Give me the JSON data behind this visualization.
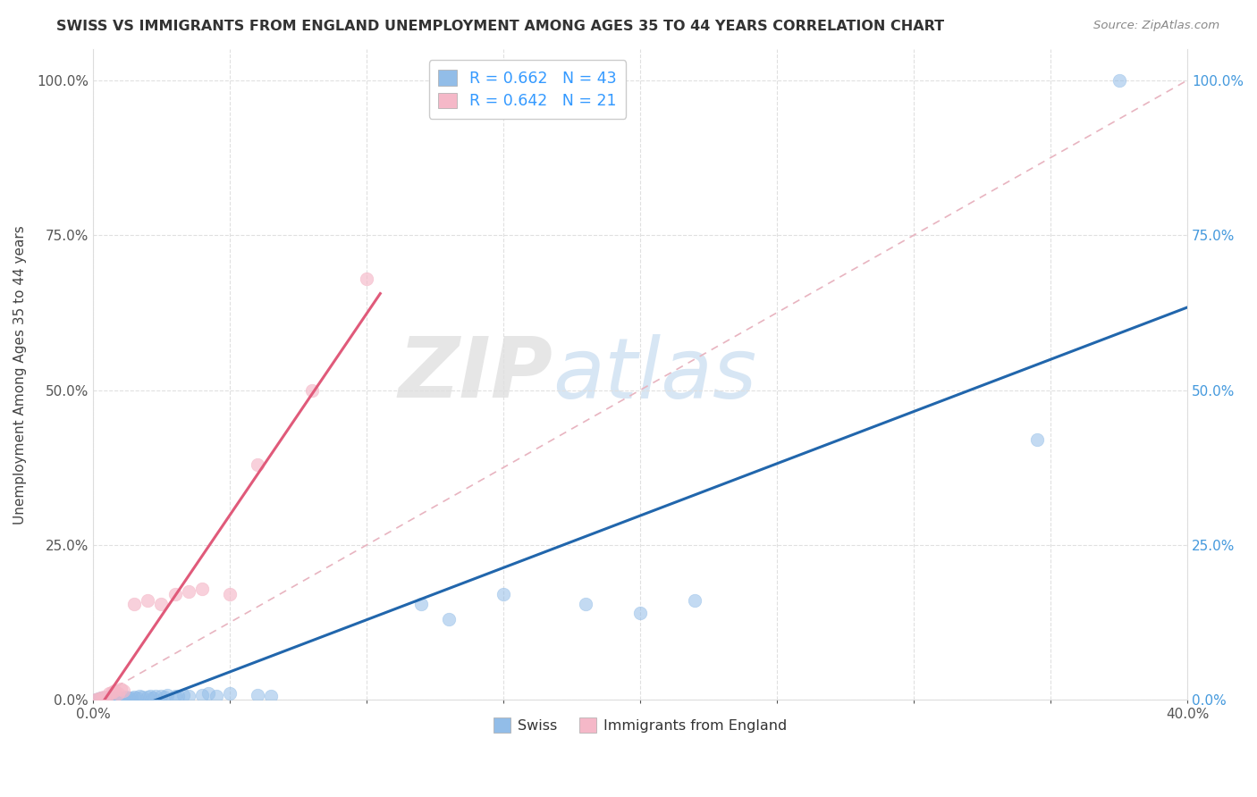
{
  "title": "SWISS VS IMMIGRANTS FROM ENGLAND UNEMPLOYMENT AMONG AGES 35 TO 44 YEARS CORRELATION CHART",
  "source": "Source: ZipAtlas.com",
  "ylabel": "Unemployment Among Ages 35 to 44 years",
  "xlim": [
    0.0,
    0.4
  ],
  "ylim": [
    0.0,
    1.05
  ],
  "xticks": [
    0.0,
    0.05,
    0.1,
    0.15,
    0.2,
    0.25,
    0.3,
    0.35,
    0.4
  ],
  "yticks": [
    0.0,
    0.25,
    0.5,
    0.75,
    1.0
  ],
  "swiss_x": [
    0.001,
    0.002,
    0.003,
    0.004,
    0.005,
    0.006,
    0.007,
    0.008,
    0.009,
    0.01,
    0.011,
    0.012,
    0.013,
    0.014,
    0.015,
    0.016,
    0.017,
    0.018,
    0.02,
    0.021,
    0.022,
    0.023,
    0.025,
    0.026,
    0.027,
    0.03,
    0.031,
    0.033,
    0.035,
    0.04,
    0.042,
    0.045,
    0.05,
    0.06,
    0.065,
    0.12,
    0.13,
    0.15,
    0.18,
    0.2,
    0.22,
    0.345,
    0.375
  ],
  "swiss_y": [
    0.001,
    0.002,
    0.003,
    0.002,
    0.003,
    0.004,
    0.002,
    0.003,
    0.004,
    0.003,
    0.004,
    0.005,
    0.004,
    0.003,
    0.005,
    0.004,
    0.006,
    0.005,
    0.005,
    0.006,
    0.004,
    0.007,
    0.006,
    0.005,
    0.008,
    0.006,
    0.007,
    0.008,
    0.007,
    0.008,
    0.01,
    0.007,
    0.01,
    0.008,
    0.007,
    0.155,
    0.13,
    0.17,
    0.155,
    0.14,
    0.16,
    0.42,
    1.0
  ],
  "england_x": [
    0.001,
    0.002,
    0.003,
    0.004,
    0.005,
    0.006,
    0.007,
    0.008,
    0.009,
    0.01,
    0.011,
    0.015,
    0.02,
    0.025,
    0.03,
    0.035,
    0.04,
    0.05,
    0.06,
    0.08,
    0.1
  ],
  "england_y": [
    0.001,
    0.002,
    0.003,
    0.005,
    0.004,
    0.01,
    0.012,
    0.015,
    0.01,
    0.018,
    0.015,
    0.155,
    0.16,
    0.155,
    0.17,
    0.175,
    0.18,
    0.17,
    0.38,
    0.5,
    0.68
  ],
  "swiss_color": "#92bde8",
  "england_color": "#f5b8c8",
  "swiss_line_color": "#2166ac",
  "england_line_color": "#e05a7a",
  "diag_line_color": "#e8b4c0",
  "legend_R_swiss": "R = 0.662",
  "legend_N_swiss": "N = 43",
  "legend_R_england": "R = 0.642",
  "legend_N_england": "N = 21",
  "watermark_zip": "ZIP",
  "watermark_atlas": "atlas",
  "background_color": "#ffffff",
  "grid_color": "#e0e0e0"
}
